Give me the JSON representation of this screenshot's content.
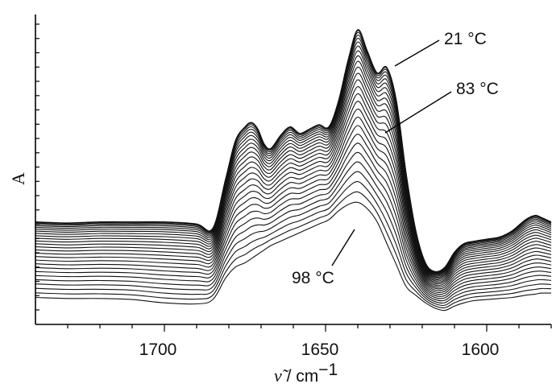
{
  "chart_data": {
    "type": "line",
    "title": "",
    "xlabel_symbol": "ν̃",
    "xlabel_unit": " / cm",
    "xlabel_exp": "−1",
    "ylabel": "A",
    "xlim": [
      1740,
      1580
    ],
    "x_ticks": [
      1700,
      1650,
      1600
    ],
    "x_tick_labels": [
      "1700",
      "1650",
      "1600"
    ],
    "y_ticks_unlabeled": 21,
    "grid": false,
    "curve_count": 27,
    "temperature_range_c": [
      21,
      98
    ],
    "profile_first": {
      "x": [
        1740,
        1730,
        1720,
        1710,
        1700,
        1690,
        1685,
        1681,
        1678,
        1675,
        1673,
        1671,
        1669,
        1667,
        1664,
        1661,
        1658,
        1655,
        1652,
        1649,
        1646,
        1643,
        1640,
        1637,
        1634,
        1631,
        1628,
        1625,
        1622,
        1619,
        1616,
        1613,
        1610,
        1607,
        1604,
        1600,
        1596,
        1592,
        1588,
        1585,
        1583,
        1580
      ],
      "y": [
        0.7,
        0.69,
        0.7,
        0.7,
        0.7,
        0.68,
        0.64,
        1.1,
        1.45,
        1.58,
        1.62,
        1.56,
        1.42,
        1.38,
        1.5,
        1.58,
        1.52,
        1.56,
        1.6,
        1.58,
        1.82,
        2.2,
        2.48,
        2.28,
        2.08,
        2.13,
        1.82,
        1.15,
        0.62,
        0.32,
        0.24,
        0.28,
        0.42,
        0.5,
        0.52,
        0.54,
        0.56,
        0.62,
        0.72,
        0.76,
        0.74,
        0.7
      ]
    },
    "profile_last": {
      "x": [
        1740,
        1730,
        1720,
        1710,
        1700,
        1690,
        1685,
        1681,
        1678,
        1675,
        1673,
        1671,
        1669,
        1667,
        1664,
        1661,
        1658,
        1655,
        1652,
        1649,
        1646,
        1643,
        1640,
        1637,
        1634,
        1631,
        1628,
        1625,
        1622,
        1619,
        1616,
        1613,
        1610,
        1607,
        1604,
        1600,
        1596,
        1592,
        1588,
        1585,
        1583,
        1580
      ],
      "y": [
        0.0,
        -0.01,
        -0.01,
        -0.02,
        -0.05,
        -0.06,
        -0.02,
        0.18,
        0.28,
        0.32,
        0.36,
        0.4,
        0.44,
        0.48,
        0.52,
        0.56,
        0.6,
        0.64,
        0.68,
        0.72,
        0.8,
        0.86,
        0.88,
        0.82,
        0.7,
        0.5,
        0.3,
        0.1,
        0.02,
        -0.05,
        -0.1,
        -0.12,
        -0.08,
        -0.05,
        -0.03,
        -0.02,
        -0.01,
        0.0,
        0.02,
        0.03,
        0.04,
        0.04
      ]
    },
    "y_range_arbitrary": [
      -0.25,
      2.62
    ],
    "annotations": [
      {
        "text": "21 °C"
      },
      {
        "text": "83 °C"
      },
      {
        "text": "98 °C"
      }
    ]
  }
}
